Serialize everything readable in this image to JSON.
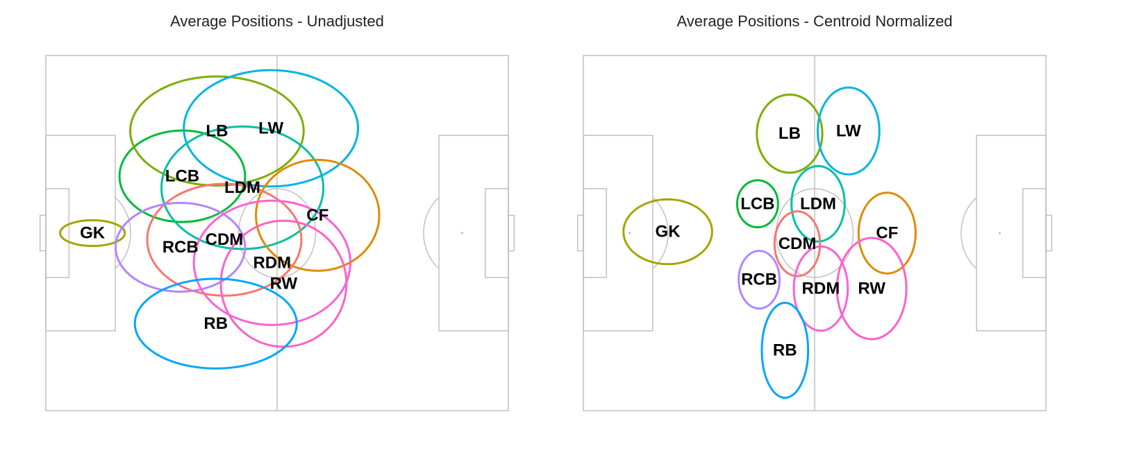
{
  "colors": {
    "GK": "#A3A500",
    "LCB": "#00BA38",
    "LB": "#7CAE00",
    "LW": "#00B4E4",
    "LDM": "#00BFA4",
    "CF": "#E38900",
    "CDM": "#F8766D",
    "RCB": "#B385FF",
    "RDM": "#FB61D7",
    "RW": "#FF61C3",
    "RB": "#00A5FF"
  },
  "chart_data": [
    {
      "type": "scatter",
      "title": "Average Positions - Unadjusted",
      "xlim": [
        0,
        120
      ],
      "ylim": [
        0,
        80
      ],
      "pitch": {
        "length": 120,
        "width": 80
      },
      "series": [
        {
          "name": "GK",
          "x": 12.1,
          "y": 40.0,
          "rx": 8.4,
          "ry": 2.9
        },
        {
          "name": "LCB",
          "x": 35.4,
          "y": 52.8,
          "rx": 16.3,
          "ry": 10.3
        },
        {
          "name": "LB",
          "x": 44.4,
          "y": 63.0,
          "rx": 22.5,
          "ry": 12.3
        },
        {
          "name": "LW",
          "x": 58.4,
          "y": 63.6,
          "rx": 22.6,
          "ry": 13.1
        },
        {
          "name": "LDM",
          "x": 51.0,
          "y": 50.2,
          "rx": 21.0,
          "ry": 13.8
        },
        {
          "name": "CF",
          "x": 70.5,
          "y": 44.0,
          "rx": 16.0,
          "ry": 12.5
        },
        {
          "name": "CDM",
          "x": 46.3,
          "y": 38.5,
          "rx": 20.0,
          "ry": 12.6
        },
        {
          "name": "RCB",
          "x": 34.9,
          "y": 36.8,
          "rx": 16.8,
          "ry": 10.0
        },
        {
          "name": "RDM",
          "x": 58.7,
          "y": 33.3,
          "rx": 20.3,
          "ry": 14.0
        },
        {
          "name": "RW",
          "x": 61.7,
          "y": 28.6,
          "rx": 16.3,
          "ry": 14.2
        },
        {
          "name": "RB",
          "x": 44.1,
          "y": 19.6,
          "rx": 21.0,
          "ry": 10.1
        }
      ]
    },
    {
      "type": "scatter",
      "title": "Average Positions - Centroid Normalized",
      "xlim": [
        0,
        120
      ],
      "ylim": [
        0,
        80
      ],
      "pitch": {
        "length": 120,
        "width": 80
      },
      "series": [
        {
          "name": "GK",
          "x": 21.9,
          "y": 40.3,
          "rx": 11.5,
          "ry": 7.3
        },
        {
          "name": "LCB",
          "x": 45.2,
          "y": 46.6,
          "rx": 5.3,
          "ry": 5.3
        },
        {
          "name": "LB",
          "x": 53.5,
          "y": 62.4,
          "rx": 8.5,
          "ry": 8.8
        },
        {
          "name": "LW",
          "x": 68.8,
          "y": 63.0,
          "rx": 8.0,
          "ry": 9.8
        },
        {
          "name": "LDM",
          "x": 60.9,
          "y": 46.6,
          "rx": 6.9,
          "ry": 8.5
        },
        {
          "name": "CF",
          "x": 78.8,
          "y": 40.0,
          "rx": 7.4,
          "ry": 9.1
        },
        {
          "name": "CDM",
          "x": 55.5,
          "y": 37.6,
          "rx": 5.9,
          "ry": 7.3
        },
        {
          "name": "RCB",
          "x": 45.6,
          "y": 29.5,
          "rx": 5.3,
          "ry": 6.5
        },
        {
          "name": "RDM",
          "x": 61.6,
          "y": 27.5,
          "rx": 7.0,
          "ry": 9.5
        },
        {
          "name": "RW",
          "x": 74.8,
          "y": 27.5,
          "rx": 9.0,
          "ry": 11.4
        },
        {
          "name": "RB",
          "x": 52.3,
          "y": 13.6,
          "rx": 6.0,
          "ry": 10.7
        }
      ]
    }
  ]
}
